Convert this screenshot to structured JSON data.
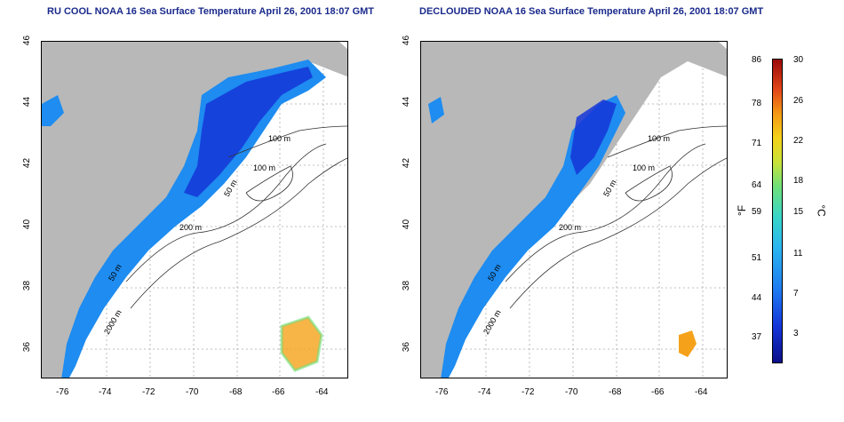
{
  "panels": [
    {
      "title": "RU COOL NOAA 16 Sea Surface Temperature April 26, 2001 18:07 GMT",
      "lat_ticks": [
        "46",
        "44",
        "42",
        "40",
        "38",
        "36"
      ],
      "lon_ticks": [
        "-76",
        "-74",
        "-72",
        "-70",
        "-68",
        "-66",
        "-64"
      ],
      "depth_labels": [
        "100 m",
        "100 m",
        "50 m",
        "200 m",
        "50 m",
        "2000 m"
      ]
    },
    {
      "title": "DECLOUDED NOAA 16 Sea Surface Temperature April 26, 2001 18:07 GMT",
      "lat_ticks": [
        "46",
        "44",
        "42",
        "40",
        "38",
        "36"
      ],
      "lon_ticks": [
        "-76",
        "-74",
        "-72",
        "-70",
        "-68",
        "-66",
        "-64"
      ],
      "depth_labels": [
        "100 m",
        "100 m",
        "50 m",
        "200 m",
        "50 m",
        "2000 m"
      ]
    }
  ],
  "colorbar": {
    "fahrenheit_labels": [
      "86",
      "78",
      "71",
      "64",
      "59",
      "51",
      "44",
      "37"
    ],
    "celsius_labels": [
      "30",
      "26",
      "22",
      "18",
      "15",
      "11",
      "7",
      "3"
    ],
    "fahrenheit_unit": "°F",
    "celsius_unit": "°C"
  },
  "colors": {
    "land": "#b8b8b8",
    "ocean": "#ffffff",
    "cold": "#1535d8",
    "cool": "#1e8cf0",
    "warm": "#f5a21a",
    "title": "#1a2a8c"
  }
}
